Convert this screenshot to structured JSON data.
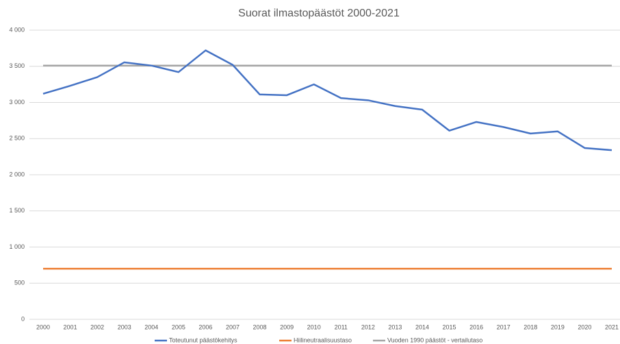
{
  "chart_data": {
    "type": "line",
    "title": "Suorat ilmastopäästöt  2000-2021",
    "categories": [
      "2000",
      "2001",
      "2002",
      "2003",
      "2004",
      "2005",
      "2006",
      "2007",
      "2008",
      "2009",
      "2010",
      "2011",
      "2012",
      "2013",
      "2014",
      "2015",
      "2016",
      "2017",
      "2018",
      "2019",
      "2020",
      "2021"
    ],
    "series": [
      {
        "name": "Toteutunut päästökehitys",
        "color": "#4472c4",
        "values": [
          3120,
          3230,
          3350,
          3555,
          3510,
          3420,
          3720,
          3520,
          3110,
          3100,
          3250,
          3060,
          3030,
          2950,
          2900,
          2610,
          2730,
          2660,
          2570,
          2600,
          2370,
          2340
        ]
      },
      {
        "name": "Hiilineutraalisuustaso",
        "color": "#ed7d31",
        "values": [
          700,
          700,
          700,
          700,
          700,
          700,
          700,
          700,
          700,
          700,
          700,
          700,
          700,
          700,
          700,
          700,
          700,
          700,
          700,
          700,
          700,
          700
        ]
      },
      {
        "name": "Vuoden 1990 päästöt - vertailutaso",
        "color": "#a5a5a5",
        "values": [
          3510,
          3510,
          3510,
          3510,
          3510,
          3510,
          3510,
          3510,
          3510,
          3510,
          3510,
          3510,
          3510,
          3510,
          3510,
          3510,
          3510,
          3510,
          3510,
          3510,
          3510,
          3510
        ]
      }
    ],
    "ylim": [
      0,
      4000
    ],
    "yticks": [
      0,
      500,
      {
        "value": 1000,
        "label": "1 000"
      },
      {
        "value": 1500,
        "label": "1 500"
      },
      {
        "value": 2000,
        "label": "2 000"
      },
      {
        "value": 2500,
        "label": "2 500"
      },
      {
        "value": 3000,
        "label": "3 000"
      },
      {
        "value": 3500,
        "label": "3 500"
      },
      {
        "value": 4000,
        "label": "4 000"
      }
    ],
    "grid": true,
    "legend": "bottom"
  }
}
